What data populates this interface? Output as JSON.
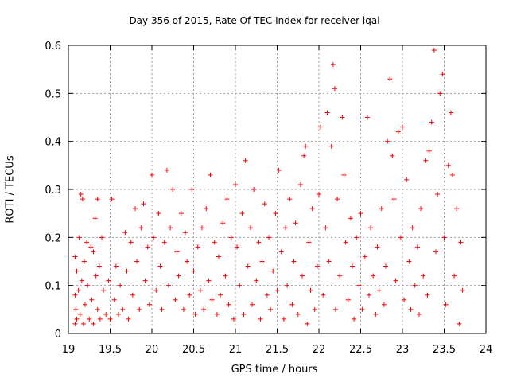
{
  "chart_data": {
    "type": "scatter",
    "title": "Day 356 of 2015, Rate Of TEC Index for receiver iqal",
    "xlabel": "GPS time / hours",
    "ylabel": "ROTI / TECUs",
    "xlim": [
      19,
      24
    ],
    "ylim": [
      0,
      0.6
    ],
    "xticks": [
      "19",
      "19.5",
      "20",
      "20.5",
      "21",
      "21.5",
      "22",
      "22.5",
      "23",
      "23.5",
      "24"
    ],
    "yticks": [
      "0",
      "0.1",
      "0.2",
      "0.3",
      "0.4",
      "0.5",
      "0.6"
    ],
    "grid": true,
    "marker": "+",
    "color": "#ff0000",
    "series": [
      {
        "name": "ROTI",
        "points": [
          [
            19.08,
            0.02
          ],
          [
            19.08,
            0.08
          ],
          [
            19.08,
            0.16
          ],
          [
            19.09,
            0.05
          ],
          [
            19.1,
            0.13
          ],
          [
            19.1,
            0.03
          ],
          [
            19.12,
            0.09
          ],
          [
            19.13,
            0.2
          ],
          [
            19.14,
            0.04
          ],
          [
            19.15,
            0.29
          ],
          [
            19.16,
            0.11
          ],
          [
            19.17,
            0.28
          ],
          [
            19.18,
            0.02
          ],
          [
            19.19,
            0.15
          ],
          [
            19.2,
            0.06
          ],
          [
            19.22,
            0.19
          ],
          [
            19.23,
            0.1
          ],
          [
            19.25,
            0.03
          ],
          [
            19.27,
            0.18
          ],
          [
            19.28,
            0.07
          ],
          [
            19.3,
            0.17
          ],
          [
            19.3,
            0.02
          ],
          [
            19.32,
            0.24
          ],
          [
            19.33,
            0.12
          ],
          [
            19.35,
            0.28
          ],
          [
            19.35,
            0.05
          ],
          [
            19.37,
            0.14
          ],
          [
            19.38,
            0.03
          ],
          [
            19.4,
            0.2
          ],
          [
            19.42,
            0.09
          ],
          [
            19.45,
            0.04
          ],
          [
            19.48,
            0.11
          ],
          [
            19.5,
            0.03
          ],
          [
            19.52,
            0.28
          ],
          [
            19.55,
            0.07
          ],
          [
            19.57,
            0.14
          ],
          [
            19.6,
            0.04
          ],
          [
            19.62,
            0.1
          ],
          [
            19.65,
            0.05
          ],
          [
            19.68,
            0.21
          ],
          [
            19.7,
            0.13
          ],
          [
            19.72,
            0.03
          ],
          [
            19.75,
            0.19
          ],
          [
            19.77,
            0.08
          ],
          [
            19.8,
            0.26
          ],
          [
            19.82,
            0.15
          ],
          [
            19.85,
            0.05
          ],
          [
            19.87,
            0.22
          ],
          [
            19.9,
            0.27
          ],
          [
            19.92,
            0.11
          ],
          [
            19.95,
            0.18
          ],
          [
            19.97,
            0.06
          ],
          [
            20.0,
            0.33
          ],
          [
            20.02,
            0.2
          ],
          [
            20.05,
            0.09
          ],
          [
            20.08,
            0.25
          ],
          [
            20.1,
            0.14
          ],
          [
            20.12,
            0.05
          ],
          [
            20.15,
            0.19
          ],
          [
            20.18,
            0.34
          ],
          [
            20.2,
            0.1
          ],
          [
            20.22,
            0.22
          ],
          [
            20.25,
            0.3
          ],
          [
            20.28,
            0.07
          ],
          [
            20.3,
            0.17
          ],
          [
            20.32,
            0.12
          ],
          [
            20.35,
            0.25
          ],
          [
            20.38,
            0.05
          ],
          [
            20.4,
            0.21
          ],
          [
            20.42,
            0.15
          ],
          [
            20.45,
            0.08
          ],
          [
            20.48,
            0.3
          ],
          [
            20.5,
            0.13
          ],
          [
            20.52,
            0.04
          ],
          [
            20.55,
            0.18
          ],
          [
            20.58,
            0.09
          ],
          [
            20.6,
            0.22
          ],
          [
            20.62,
            0.05
          ],
          [
            20.65,
            0.26
          ],
          [
            20.68,
            0.11
          ],
          [
            20.7,
            0.33
          ],
          [
            20.72,
            0.07
          ],
          [
            20.75,
            0.19
          ],
          [
            20.78,
            0.04
          ],
          [
            20.8,
            0.16
          ],
          [
            20.82,
            0.08
          ],
          [
            20.85,
            0.23
          ],
          [
            20.88,
            0.12
          ],
          [
            20.9,
            0.28
          ],
          [
            20.92,
            0.06
          ],
          [
            20.95,
            0.2
          ],
          [
            20.98,
            0.03
          ],
          [
            21.0,
            0.31
          ],
          [
            21.02,
            0.18
          ],
          [
            21.05,
            0.1
          ],
          [
            21.08,
            0.25
          ],
          [
            21.1,
            0.04
          ],
          [
            21.12,
            0.36
          ],
          [
            21.15,
            0.14
          ],
          [
            21.18,
            0.22
          ],
          [
            21.2,
            0.06
          ],
          [
            21.22,
            0.3
          ],
          [
            21.25,
            0.11
          ],
          [
            21.28,
            0.19
          ],
          [
            21.3,
            0.03
          ],
          [
            21.32,
            0.15
          ],
          [
            21.35,
            0.27
          ],
          [
            21.38,
            0.08
          ],
          [
            21.4,
            0.2
          ],
          [
            21.42,
            0.05
          ],
          [
            21.45,
            0.13
          ],
          [
            21.48,
            0.25
          ],
          [
            21.5,
            0.09
          ],
          [
            21.52,
            0.34
          ],
          [
            21.55,
            0.17
          ],
          [
            21.58,
            0.03
          ],
          [
            21.6,
            0.22
          ],
          [
            21.62,
            0.1
          ],
          [
            21.65,
            0.28
          ],
          [
            21.68,
            0.06
          ],
          [
            21.7,
            0.15
          ],
          [
            21.72,
            0.23
          ],
          [
            21.75,
            0.04
          ],
          [
            21.78,
            0.31
          ],
          [
            21.8,
            0.12
          ],
          [
            21.82,
            0.37
          ],
          [
            21.84,
            0.39
          ],
          [
            21.86,
            0.02
          ],
          [
            21.88,
            0.19
          ],
          [
            21.9,
            0.09
          ],
          [
            21.92,
            0.26
          ],
          [
            21.95,
            0.05
          ],
          [
            21.98,
            0.14
          ],
          [
            22.0,
            0.29
          ],
          [
            22.02,
            0.43
          ],
          [
            22.05,
            0.08
          ],
          [
            22.08,
            0.22
          ],
          [
            22.1,
            0.46
          ],
          [
            22.12,
            0.15
          ],
          [
            22.15,
            0.39
          ],
          [
            22.17,
            0.56
          ],
          [
            22.19,
            0.51
          ],
          [
            22.2,
            0.05
          ],
          [
            22.22,
            0.28
          ],
          [
            22.25,
            0.12
          ],
          [
            22.28,
            0.45
          ],
          [
            22.3,
            0.33
          ],
          [
            22.32,
            0.19
          ],
          [
            22.35,
            0.07
          ],
          [
            22.38,
            0.24
          ],
          [
            22.4,
            0.14
          ],
          [
            22.42,
            0.03
          ],
          [
            22.45,
            0.2
          ],
          [
            22.48,
            0.1
          ],
          [
            22.5,
            0.25
          ],
          [
            22.52,
            0.05
          ],
          [
            22.55,
            0.16
          ],
          [
            22.58,
            0.45
          ],
          [
            22.6,
            0.08
          ],
          [
            22.62,
            0.22
          ],
          [
            22.65,
            0.12
          ],
          [
            22.68,
            0.04
          ],
          [
            22.7,
            0.18
          ],
          [
            22.72,
            0.09
          ],
          [
            22.75,
            0.26
          ],
          [
            22.78,
            0.06
          ],
          [
            22.8,
            0.14
          ],
          [
            22.82,
            0.4
          ],
          [
            22.85,
            0.53
          ],
          [
            22.88,
            0.37
          ],
          [
            22.9,
            0.28
          ],
          [
            22.92,
            0.11
          ],
          [
            22.95,
            0.42
          ],
          [
            22.98,
            0.2
          ],
          [
            23.0,
            0.43
          ],
          [
            23.02,
            0.07
          ],
          [
            23.05,
            0.32
          ],
          [
            23.08,
            0.15
          ],
          [
            23.1,
            0.05
          ],
          [
            23.12,
            0.22
          ],
          [
            23.15,
            0.1
          ],
          [
            23.18,
            0.18
          ],
          [
            23.2,
            0.04
          ],
          [
            23.22,
            0.26
          ],
          [
            23.25,
            0.12
          ],
          [
            23.28,
            0.36
          ],
          [
            23.3,
            0.08
          ],
          [
            23.32,
            0.38
          ],
          [
            23.35,
            0.44
          ],
          [
            23.38,
            0.59
          ],
          [
            23.4,
            0.17
          ],
          [
            23.42,
            0.29
          ],
          [
            23.45,
            0.5
          ],
          [
            23.48,
            0.54
          ],
          [
            23.5,
            0.2
          ],
          [
            23.52,
            0.06
          ],
          [
            23.55,
            0.35
          ],
          [
            23.58,
            0.46
          ],
          [
            23.6,
            0.33
          ],
          [
            23.62,
            0.12
          ],
          [
            23.65,
            0.26
          ],
          [
            23.68,
            0.02
          ],
          [
            23.7,
            0.19
          ],
          [
            23.72,
            0.09
          ]
        ]
      }
    ]
  }
}
